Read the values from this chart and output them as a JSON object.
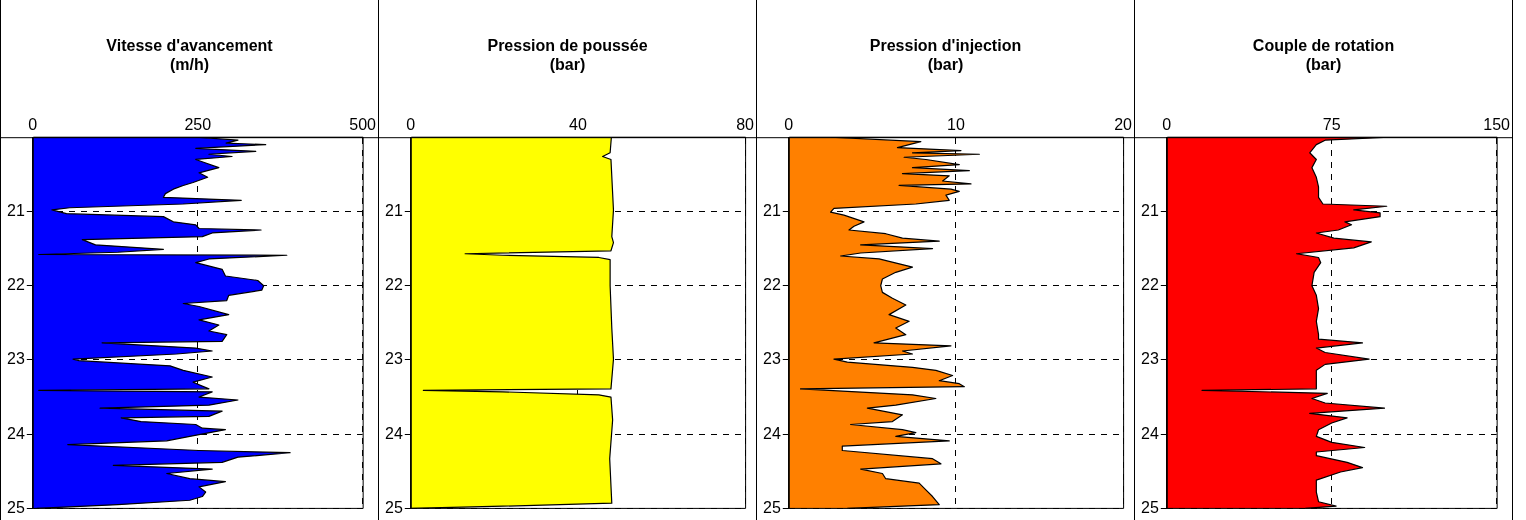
{
  "chart_data": [
    {
      "type": "area",
      "orientation": "horizontal",
      "title": "Vitesse d'avancement",
      "subtitle": "(m/h)",
      "x": [
        20.0,
        20.04,
        20.08,
        20.1,
        20.15,
        20.19,
        20.23,
        20.26,
        20.3,
        20.34,
        20.41,
        20.48,
        20.54,
        20.61,
        20.65,
        20.7,
        20.76,
        20.81,
        20.85,
        20.9,
        20.95,
        20.98,
        21.03,
        21.07,
        21.14,
        21.18,
        21.23,
        21.25,
        21.29,
        21.34,
        21.38,
        21.45,
        21.51,
        21.55,
        21.58,
        21.59,
        21.64,
        21.69,
        21.78,
        21.87,
        21.93,
        22.0,
        22.06,
        22.13,
        22.2,
        22.24,
        22.28,
        22.39,
        22.46,
        22.53,
        22.61,
        22.66,
        22.75,
        22.77,
        22.84,
        22.88,
        22.92,
        22.99,
        23.01,
        23.08,
        23.14,
        23.23,
        23.3,
        23.39,
        23.41,
        23.43,
        23.5,
        23.54,
        23.61,
        23.65,
        23.69,
        23.76,
        23.78,
        23.83,
        23.87,
        23.92,
        23.94,
        24.03,
        24.09,
        24.14,
        24.22,
        24.25,
        24.31,
        24.38,
        24.42,
        24.47,
        24.53,
        24.6,
        24.64,
        24.71,
        24.78,
        24.84,
        24.89,
        24.95,
        25.0
      ],
      "series": [
        {
          "color": "#0000ff",
          "values": [
            247,
            311,
            293,
            353,
            247,
            338,
            267,
            302,
            247,
            260,
            282,
            252,
            265,
            243,
            228,
            213,
            201,
            198,
            316,
            228,
            56,
            29,
            51,
            198,
            213,
            247,
            252,
            346,
            272,
            257,
            75,
            95,
            198,
            129,
            9,
            385,
            267,
            247,
            287,
            292,
            341,
            350,
            347,
            297,
            294,
            228,
            252,
            297,
            252,
            282,
            267,
            294,
            287,
            105,
            247,
            272,
            218,
            61,
            70,
            208,
            228,
            272,
            243,
            267,
            9,
            272,
            252,
            311,
            267,
            102,
            287,
            267,
            134,
            164,
            247,
            257,
            292,
            238,
            203,
            53,
            252,
            390,
            311,
            287,
            122,
            272,
            203,
            238,
            292,
            252,
            262,
            257,
            238,
            129,
            6
          ]
        }
      ],
      "xlim": [
        0,
        500
      ],
      "xticks": [
        0,
        250,
        500
      ],
      "ylim": [
        25,
        20
      ],
      "yticks": [
        21,
        22,
        23,
        24,
        25
      ],
      "grid": true
    },
    {
      "type": "area",
      "orientation": "horizontal",
      "title": "Pression de poussée",
      "subtitle": "(bar)",
      "x": [
        20.0,
        20.21,
        20.26,
        20.3,
        20.98,
        21.34,
        21.42,
        21.53,
        21.57,
        21.59,
        21.62,
        21.65,
        22.0,
        22.57,
        22.99,
        23.39,
        23.41,
        23.43,
        23.47,
        23.5,
        23.81,
        24.33,
        24.93,
        24.97,
        25.0
      ],
      "series": [
        {
          "color": "#ffff00",
          "values": [
            48,
            47.7,
            45.9,
            47.9,
            48.5,
            48.1,
            48.5,
            47.9,
            13,
            22,
            45,
            47.7,
            47.7,
            48.1,
            48.5,
            47.9,
            3,
            22,
            45,
            47.9,
            48.3,
            47.6,
            48.1,
            22,
            0
          ]
        }
      ],
      "xlim": [
        0,
        80
      ],
      "xticks": [
        0,
        40,
        80
      ],
      "ylim": [
        25,
        20
      ],
      "yticks": [
        21,
        22,
        23,
        24,
        25
      ],
      "grid": true
    },
    {
      "type": "area",
      "orientation": "horizontal",
      "title": "Pression d'injection",
      "subtitle": "(bar)",
      "x": [
        20.0,
        20.06,
        20.14,
        20.18,
        20.21,
        20.23,
        20.27,
        20.3,
        20.37,
        20.41,
        20.45,
        20.49,
        20.52,
        20.59,
        20.63,
        20.65,
        20.7,
        20.73,
        20.78,
        20.85,
        20.9,
        20.96,
        21.01,
        21.05,
        21.14,
        21.2,
        21.25,
        21.3,
        21.36,
        21.4,
        21.45,
        21.5,
        21.56,
        21.6,
        21.64,
        21.75,
        21.82,
        21.91,
        22.0,
        22.09,
        22.17,
        22.26,
        22.39,
        22.48,
        22.57,
        22.66,
        22.77,
        22.81,
        22.88,
        22.92,
        22.99,
        23.03,
        23.1,
        23.14,
        23.21,
        23.28,
        23.32,
        23.36,
        23.39,
        23.47,
        23.52,
        23.61,
        23.65,
        23.74,
        23.83,
        23.87,
        23.94,
        23.98,
        24.03,
        24.09,
        24.16,
        24.22,
        24.33,
        24.4,
        24.47,
        24.53,
        24.6,
        24.66,
        24.75,
        24.84,
        24.95,
        25.0
      ],
      "series": [
        {
          "color": "#ff8000",
          "values": [
            2.5,
            7.9,
            6.5,
            10.3,
            7.4,
            11.4,
            6.9,
            8.2,
            10.2,
            7.4,
            10.8,
            6.8,
            9.6,
            9.2,
            10.9,
            6.6,
            9.7,
            10.2,
            9.4,
            9.6,
            7.6,
            2.7,
            2.5,
            3.3,
            4.5,
            3.9,
            3.6,
            5.8,
            6.8,
            9.0,
            4.3,
            8.6,
            4.3,
            3.1,
            5.4,
            7.4,
            6.4,
            5.6,
            5.5,
            5.6,
            6.2,
            7.0,
            6.0,
            7.2,
            6.4,
            7.0,
            5.1,
            9.7,
            6.8,
            7.4,
            2.7,
            3.5,
            7.4,
            8.8,
            9.8,
            9.0,
            10.2,
            10.5,
            0.7,
            7.4,
            8.8,
            6.4,
            4.7,
            6.8,
            6.2,
            3.7,
            6.8,
            7.6,
            6.4,
            9.6,
            3.2,
            3.2,
            8.6,
            9.1,
            4.3,
            5.6,
            5.8,
            7.8,
            8.2,
            8.6,
            9.0,
            3.5
          ]
        }
      ],
      "xlim": [
        0,
        20
      ],
      "xticks": [
        0,
        10,
        20
      ],
      "ylim": [
        25,
        20
      ],
      "yticks": [
        21,
        22,
        23,
        24,
        25
      ],
      "grid": true
    },
    {
      "type": "area",
      "orientation": "horizontal",
      "title": "Couple de rotation",
      "subtitle": "(bar)",
      "x": [
        20.0,
        20.04,
        20.1,
        20.21,
        20.3,
        20.41,
        20.54,
        20.67,
        20.81,
        20.9,
        20.93,
        20.98,
        21.02,
        21.07,
        21.14,
        21.18,
        21.25,
        21.29,
        21.36,
        21.41,
        21.49,
        21.57,
        21.62,
        21.69,
        21.82,
        22.0,
        22.13,
        22.31,
        22.48,
        22.66,
        22.72,
        22.77,
        22.84,
        22.9,
        22.99,
        23.06,
        23.14,
        23.32,
        23.39,
        23.41,
        23.45,
        23.52,
        23.58,
        23.65,
        23.72,
        23.78,
        23.85,
        23.94,
        24.03,
        24.11,
        24.18,
        24.24,
        24.29,
        24.38,
        24.45,
        24.51,
        24.62,
        24.78,
        24.91,
        24.97,
        25.0
      ],
      "series": [
        {
          "color": "#ff0000",
          "values": [
            101,
            72,
            68,
            65,
            68,
            66,
            68,
            69,
            69,
            71,
            100,
            85,
            97,
            97,
            81,
            84,
            78,
            68,
            76,
            93,
            85,
            59,
            69,
            70,
            67,
            66,
            68,
            69,
            68,
            69,
            69,
            89,
            68,
            72,
            92,
            72,
            68,
            68,
            68,
            16,
            73,
            66,
            72,
            99,
            65,
            82,
            75,
            69,
            68,
            75,
            90,
            68,
            68,
            82,
            89,
            79,
            68,
            68,
            69,
            77,
            63
          ]
        }
      ],
      "xlim": [
        0,
        150
      ],
      "xticks": [
        0,
        75,
        150
      ],
      "ylim": [
        25,
        20
      ],
      "yticks": [
        21,
        22,
        23,
        24,
        25
      ],
      "grid": true
    }
  ]
}
